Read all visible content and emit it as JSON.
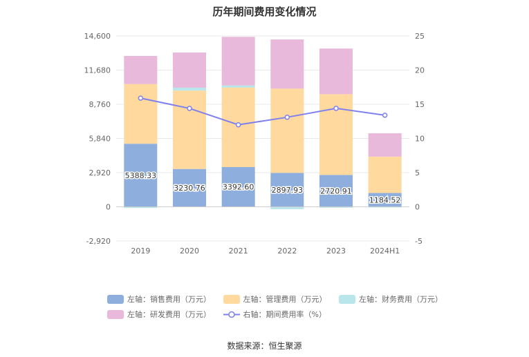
{
  "chart_data": {
    "type": "bar",
    "title": "历年期间费用变化情况",
    "categories": [
      "2019",
      "2020",
      "2021",
      "2022",
      "2023",
      "2024H1"
    ],
    "left_axis": {
      "ticks": [
        "14,600",
        "11,680",
        "8,760",
        "5,840",
        "2,920",
        "0",
        "-2,920"
      ],
      "ylim": [
        -2920,
        14600
      ]
    },
    "right_axis": {
      "ticks": [
        "25",
        "20",
        "15",
        "10",
        "5",
        "0",
        "-5"
      ],
      "ylim": [
        -5,
        25
      ]
    },
    "series": [
      {
        "name": "左轴：销售费用（万元）",
        "type": "bar",
        "stack": true,
        "color": "#8eaedd",
        "values": [
          5388.33,
          3230.76,
          3392.6,
          2897.93,
          2720.91,
          1184.52
        ],
        "labels": [
          "5388.33",
          "3230.76",
          "3392.60",
          "2897.93",
          "2720.91",
          "1184.52"
        ]
      },
      {
        "name": "左轴：管理费用（万元）",
        "type": "bar",
        "stack": true,
        "color": "#ffd99e",
        "values": [
          5100,
          6700,
          6800,
          7200,
          6900,
          3100
        ]
      },
      {
        "name": "左轴：财务费用（万元）",
        "type": "bar",
        "stack": true,
        "color": "#b9e6ea",
        "values": [
          -100,
          250,
          180,
          -200,
          -80,
          -60
        ]
      },
      {
        "name": "左轴：研发费用（万元）",
        "type": "bar",
        "stack": true,
        "color": "#e8b9da",
        "values": [
          2400,
          3000,
          4150,
          4200,
          3900,
          2000
        ]
      },
      {
        "name": "右轴：期间费用率（%）",
        "type": "line",
        "axis": "right",
        "color": "#7f80ef",
        "values": [
          15.9,
          14.4,
          12.0,
          13.1,
          14.4,
          13.4
        ]
      }
    ]
  },
  "legend": {
    "row1": [
      {
        "label": "左轴：销售费用（万元）",
        "color": "#8eaedd"
      },
      {
        "label": "左轴：管理费用（万元）",
        "color": "#ffd99e"
      },
      {
        "label": "左轴：财务费用（万元）",
        "color": "#b9e6ea"
      }
    ],
    "row2": [
      {
        "label": "左轴：研发费用（万元）",
        "color": "#e8b9da"
      },
      {
        "label": "右轴：期间费用率（%）",
        "color": "#7f80ef"
      }
    ]
  },
  "source": "数据来源：恒生聚源"
}
